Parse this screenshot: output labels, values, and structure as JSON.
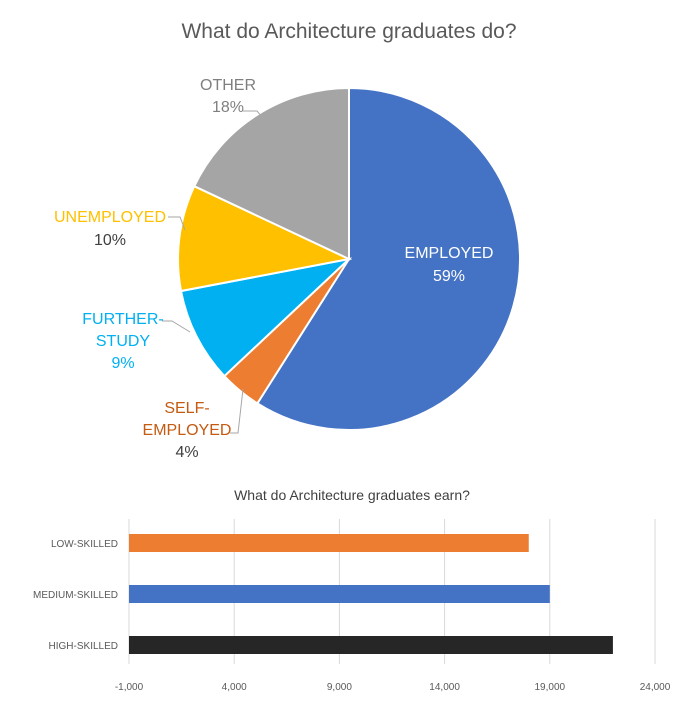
{
  "chart_data": [
    {
      "type": "pie",
      "title": "What do Architecture graduates do?",
      "slices": [
        {
          "name": "EMPLOYED",
          "value": 59,
          "label_lines": [
            "EMPLOYED"
          ],
          "pct_label": "59%",
          "color": "#4472C4",
          "label_color": "#FFFFFF",
          "pct_color": "#FFFFFF"
        },
        {
          "name": "SELF-EMPLOYED",
          "value": 4,
          "label_lines": [
            "SELF-",
            "EMPLOYED"
          ],
          "pct_label": "4%",
          "color": "#ED7D31",
          "label_color": "#C55A11",
          "pct_color": "#404040"
        },
        {
          "name": "FURTHER-STUDY",
          "value": 9,
          "label_lines": [
            "FURTHER-",
            "STUDY"
          ],
          "pct_label": "9%",
          "color": "#00B0F0",
          "label_color": "#00B0F0",
          "pct_color": "#00B0F0"
        },
        {
          "name": "UNEMPLOYED",
          "value": 10,
          "label_lines": [
            "UNEMPLOYED"
          ],
          "pct_label": "10%",
          "color": "#FFC000",
          "label_color": "#FFC000",
          "pct_color": "#404040"
        },
        {
          "name": "OTHER",
          "value": 18,
          "label_lines": [
            "OTHER"
          ],
          "pct_label": "18%",
          "color": "#A5A5A5",
          "label_color": "#7F7F7F",
          "pct_color": "#7F7F7F"
        }
      ],
      "start_angle": 0,
      "direction": "clockwise"
    },
    {
      "type": "bar",
      "orientation": "horizontal",
      "title": "What do Architecture graduates earn?",
      "categories": [
        "LOW-SKILLED",
        "MEDIUM-SKILLED",
        "HIGH-SKILLED"
      ],
      "values": [
        18000,
        19000,
        22000
      ],
      "colors": [
        "#ED7D31",
        "#4472C4",
        "#262626"
      ],
      "xlim": [
        -1000,
        24000
      ],
      "xticks": [
        -1000,
        4000,
        9000,
        14000,
        19000,
        24000
      ],
      "xtick_labels": [
        "-1,000",
        "4,000",
        "9,000",
        "14,000",
        "19,000",
        "24,000"
      ],
      "grid": true
    }
  ]
}
